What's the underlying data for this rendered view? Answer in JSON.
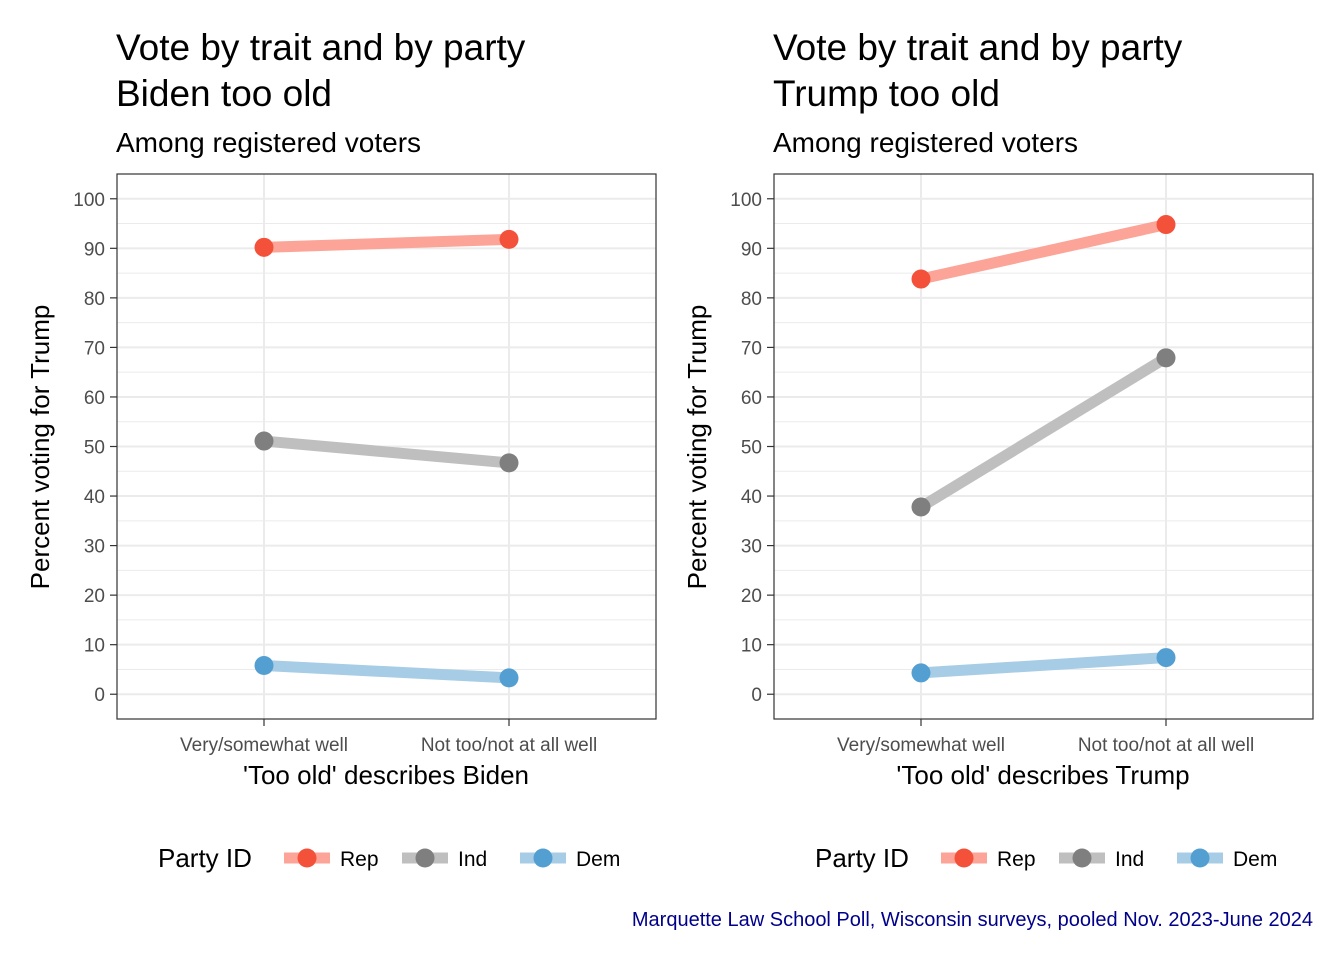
{
  "caption": "Marquette Law School Poll, Wisconsin surveys, pooled Nov. 2023-June 2024",
  "caption_color": "#00008B",
  "legend": {
    "title": "Party ID",
    "items": [
      {
        "label": "Rep",
        "line_color": "#FCA497",
        "point_color": "#F4513B"
      },
      {
        "label": "Ind",
        "line_color": "#BFBFBF",
        "point_color": "#7F7F7F"
      },
      {
        "label": "Dem",
        "line_color": "#A7CCE6",
        "point_color": "#549FD2"
      }
    ]
  },
  "chart_data": [
    {
      "type": "line",
      "title_line1": "Vote by trait and by party",
      "title_line2": "Biden too old",
      "subtitle": "Among registered voters",
      "xlabel": "'Too old' describes Biden",
      "ylabel": "Percent voting for Trump",
      "categories": [
        "Very/somewhat well",
        "Not too/not at all well"
      ],
      "ylim": [
        -5,
        105
      ],
      "yticks": [
        "0",
        "10",
        "20",
        "30",
        "40",
        "50",
        "60",
        "70",
        "80",
        "90",
        "100"
      ],
      "grid": true,
      "legend_position": "bottom",
      "series": [
        {
          "name": "Rep",
          "values": [
            90.2,
            91.8
          ]
        },
        {
          "name": "Ind",
          "values": [
            51.1,
            46.7
          ]
        },
        {
          "name": "Dem",
          "values": [
            5.8,
            3.3
          ]
        }
      ]
    },
    {
      "type": "line",
      "title_line1": "Vote by trait and by party",
      "title_line2": "Trump too old",
      "subtitle": "Among registered voters",
      "xlabel": "'Too old' describes Trump",
      "ylabel": "Percent voting for Trump",
      "categories": [
        "Very/somewhat well",
        "Not too/not at all well"
      ],
      "ylim": [
        -5,
        105
      ],
      "yticks": [
        "0",
        "10",
        "20",
        "30",
        "40",
        "50",
        "60",
        "70",
        "80",
        "90",
        "100"
      ],
      "grid": true,
      "legend_position": "bottom",
      "series": [
        {
          "name": "Rep",
          "values": [
            83.8,
            94.8
          ]
        },
        {
          "name": "Ind",
          "values": [
            37.8,
            67.9
          ]
        },
        {
          "name": "Dem",
          "values": [
            4.3,
            7.4
          ]
        }
      ]
    }
  ]
}
